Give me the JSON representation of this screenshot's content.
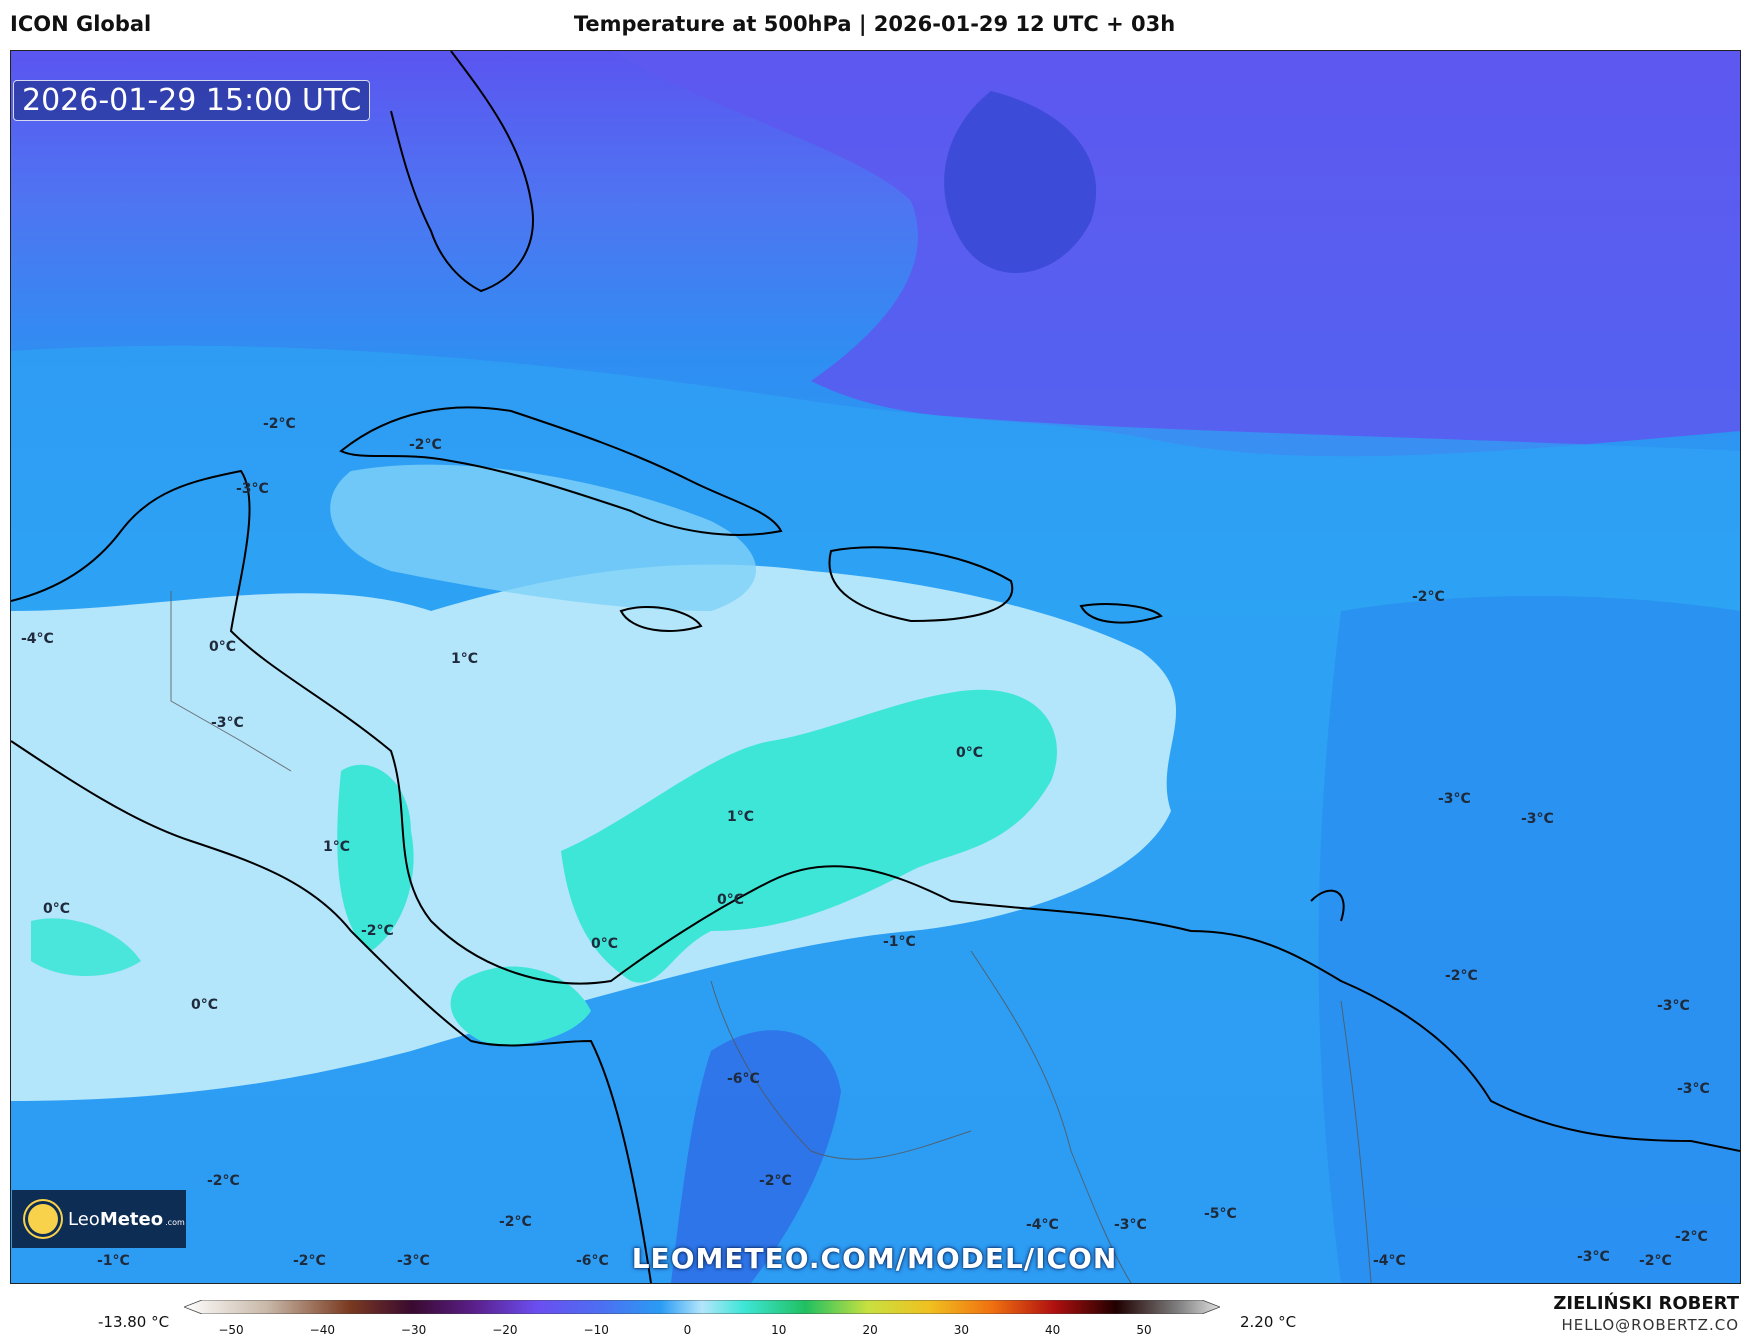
{
  "header": {
    "model": "ICON Global",
    "title": "Temperature at 500hPa | 2026-01-29 12 UTC + 03h"
  },
  "valid_time": "2026-01-29 15:00 UTC",
  "watermark_url": "LEOMETEO.COM/MODEL/ICON",
  "logo": {
    "brand_light": "Leo",
    "brand_bold": "Meteo",
    "domain": ".com"
  },
  "credits": {
    "author": "ZIELIŃSKI ROBERT",
    "email": "HELLO@ROBERTZ.CO"
  },
  "colorbar": {
    "min_label": "-13.80 °C",
    "max_label": "2.20 °C",
    "ticks": [
      "−50",
      "−40",
      "−30",
      "−20",
      "−10",
      "0",
      "10",
      "20",
      "30",
      "40",
      "50"
    ]
  },
  "map_labels": [
    {
      "text": "-2°C"
    },
    {
      "text": "-2°C"
    },
    {
      "text": "-3°C"
    },
    {
      "text": "-4°C"
    },
    {
      "text": "0°C"
    },
    {
      "text": "1°C"
    },
    {
      "text": "-3°C"
    },
    {
      "text": "1°C"
    },
    {
      "text": "0°C"
    },
    {
      "text": "1°C"
    },
    {
      "text": "0°C"
    },
    {
      "text": "0°C"
    },
    {
      "text": "-2°C"
    },
    {
      "text": "0°C"
    },
    {
      "text": "0°C"
    },
    {
      "text": "-1°C"
    },
    {
      "text": "-6°C"
    },
    {
      "text": "-2°C"
    },
    {
      "text": "-2°C"
    },
    {
      "text": "-2°C"
    },
    {
      "text": "-1°C"
    },
    {
      "text": "-2°C"
    },
    {
      "text": "-3°C"
    },
    {
      "text": "-6°C"
    },
    {
      "text": "-4°C"
    },
    {
      "text": "-3°C"
    },
    {
      "text": "-5°C"
    },
    {
      "text": "-2°C"
    },
    {
      "text": "-3°C"
    },
    {
      "text": "-3°C"
    },
    {
      "text": "-2°C"
    },
    {
      "text": "-3°C"
    },
    {
      "text": "-3°C"
    },
    {
      "text": "-2°C"
    },
    {
      "text": "-3°C"
    },
    {
      "text": "-4°C"
    },
    {
      "text": "-2°C"
    }
  ]
}
